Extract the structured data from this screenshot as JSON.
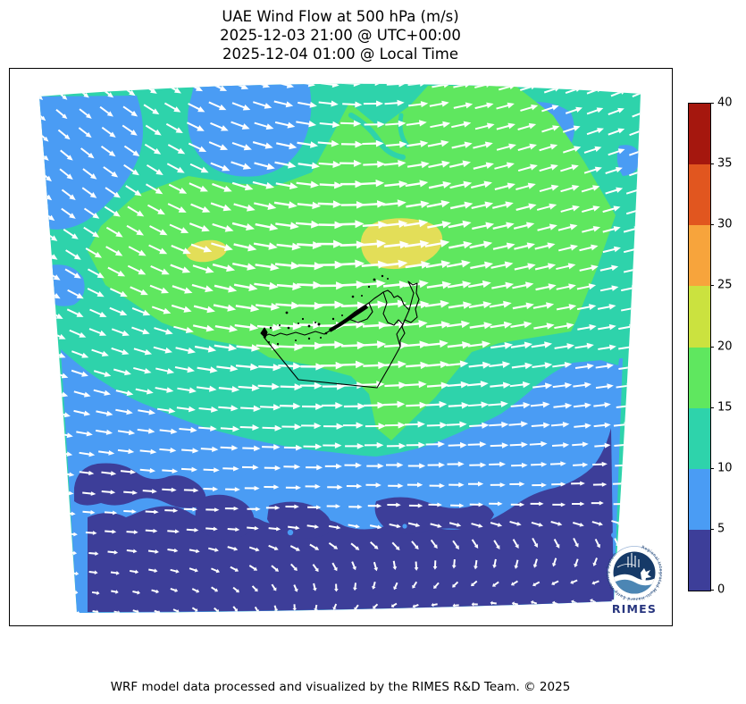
{
  "title": {
    "line1": "UAE Wind Flow at 500 hPa (m/s)",
    "line2": "2025-12-03 21:00 @ UTC+00:00",
    "line3": "2025-12-04 01:00 @ Local Time"
  },
  "footer": {
    "credit": "WRF model data processed and visualized by the RIMES R&D Team. © 2025"
  },
  "logo": {
    "org": "RIMES",
    "ring_text": "Regional Integrated Multi-Hazard Early Warning System"
  },
  "colorbar": {
    "unit": "m/s",
    "min": 0,
    "max": 40,
    "step": 5,
    "tick_values": [
      0,
      5,
      10,
      15,
      20,
      25,
      30,
      35,
      40
    ],
    "segments_bottom_to_top": [
      {
        "range": "0-5",
        "color": "#3d3e99"
      },
      {
        "range": "5-10",
        "color": "#4a9cf4"
      },
      {
        "range": "10-15",
        "color": "#2ed3ab"
      },
      {
        "range": "15-20",
        "color": "#5fe75f"
      },
      {
        "range": "20-25",
        "color": "#cbe23f"
      },
      {
        "range": "25-30",
        "color": "#f7a43c"
      },
      {
        "range": "30-35",
        "color": "#e1561f"
      },
      {
        "range": "35-40",
        "color": "#a5170e"
      }
    ]
  },
  "colors": {
    "band0_5": "#3d3e99",
    "band5_10": "#4a9cf4",
    "band10_15": "#2ed3ab",
    "band15_20": "#5fe75f",
    "band20_25": "#e3de58",
    "arrow": "#ffffff",
    "coastline": "#000000",
    "logo_dark_blue": "#163a68",
    "logo_text_blue": "#27357e",
    "logo_wave_blue": "#4c86b4"
  },
  "chart_data": {
    "type": "vector_field_map",
    "title": "UAE Wind Flow at 500 hPa (m/s)",
    "variable": "wind speed and direction at 500 hPa",
    "unit": "m/s",
    "levels": [
      0,
      5,
      10,
      15,
      20,
      25,
      30,
      35,
      40
    ],
    "level_colors": [
      "#3d3e99",
      "#4a9cf4",
      "#2ed3ab",
      "#5fe75f",
      "#cbe23f",
      "#f7a43c",
      "#e1561f",
      "#a5170e"
    ],
    "legend_position": "right",
    "regions": [
      {
        "area": "north and northwest edge",
        "speed_band_ms": "5-10",
        "flow": "toward southeast"
      },
      {
        "area": "northern half background",
        "speed_band_ms": "10-15",
        "flow": "toward east-southeast"
      },
      {
        "area": "central ridge over and north of UAE",
        "speed_band_ms": "15-20",
        "flow": "toward east, curving northeast on east side"
      },
      {
        "area": "two small cores north of UAE coast",
        "speed_band_ms": "20-25",
        "flow": "toward east"
      },
      {
        "area": "mid-south band",
        "speed_band_ms": "5-10",
        "flow": "toward east"
      },
      {
        "area": "southern quarter",
        "speed_band_ms": "0-5",
        "flow": "weak, variable westward"
      }
    ],
    "flow_field": {
      "grid_cols": 28,
      "grid_rows": 27,
      "angles_deg_screen": [
        [
          42,
          34,
          22,
          5,
          -10,
          -18,
          -22
        ],
        [
          40,
          33,
          18,
          2,
          -12,
          -16,
          -18
        ],
        [
          32,
          26,
          12,
          -2,
          -10,
          -13,
          -13
        ],
        [
          22,
          16,
          6,
          -2,
          -6,
          -9,
          -9
        ],
        [
          10,
          6,
          2,
          0,
          -2,
          -4,
          -6
        ],
        [
          4,
          2,
          0,
          1,
          2,
          1,
          0
        ],
        [
          8,
          20,
          60,
          120,
          170,
          195,
          210
        ]
      ],
      "speeds_ms": [
        [
          8,
          12,
          13,
          13,
          13,
          12,
          11
        ],
        [
          11,
          13,
          15,
          16,
          16,
          14,
          12
        ],
        [
          12,
          14,
          17,
          19,
          18,
          15,
          12
        ],
        [
          12,
          13,
          17,
          18,
          17,
          15,
          12
        ],
        [
          11,
          12,
          13,
          14,
          14,
          13,
          11
        ],
        [
          7,
          8,
          8,
          8,
          8,
          8,
          7
        ],
        [
          3,
          3,
          3,
          3,
          3,
          3,
          3
        ]
      ]
    }
  }
}
